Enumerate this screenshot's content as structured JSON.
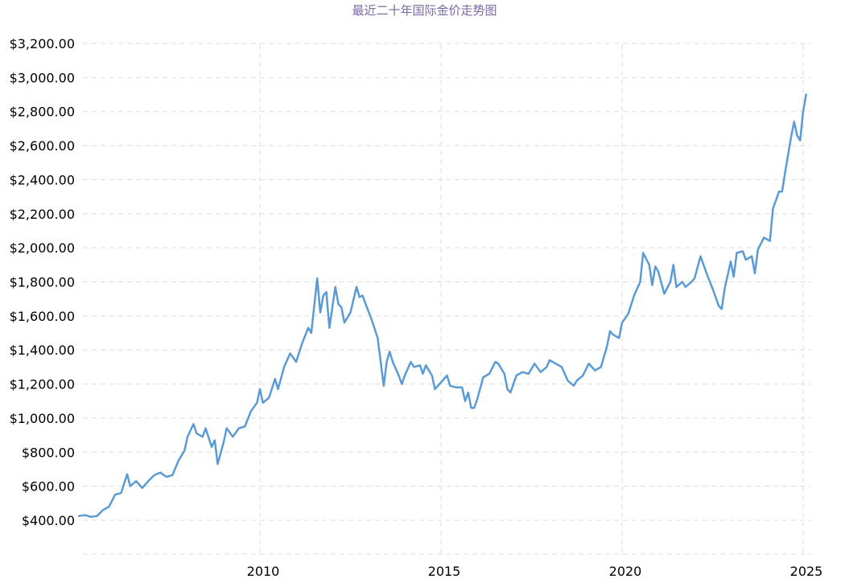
{
  "chart_data": {
    "type": "line",
    "title": "最近二十年国际金价走势图",
    "xlabel": "",
    "ylabel": "",
    "ylim": [
      400,
      3200
    ],
    "y_ticks": [
      400,
      600,
      800,
      1000,
      1200,
      1400,
      1600,
      1800,
      2000,
      2200,
      2400,
      2600,
      2800,
      3000,
      3200
    ],
    "y_tick_labels": [
      "$400.00",
      "$600.00",
      "$800.00",
      "$1,000.00",
      "$1,200.00",
      "$1,400.00",
      "$1,600.00",
      "$1,800.00",
      "$2,000.00",
      "$2,200.00",
      "$2,400.00",
      "$2,600.00",
      "$2,800.00",
      "$3,000.00",
      "$3,200.00"
    ],
    "x_ticks": [
      "2010",
      "2015",
      "2020",
      "2025"
    ],
    "grid": true,
    "legend": "none",
    "color": "#5b9bd5",
    "series": [
      {
        "values": [
          [
            "2005-01",
            425
          ],
          [
            "2005-03",
            430
          ],
          [
            "2005-05",
            420
          ],
          [
            "2005-07",
            425
          ],
          [
            "2005-09",
            460
          ],
          [
            "2005-11",
            480
          ],
          [
            "2006-01",
            550
          ],
          [
            "2006-03",
            560
          ],
          [
            "2006-05",
            670
          ],
          [
            "2006-06",
            600
          ],
          [
            "2006-08",
            630
          ],
          [
            "2006-10",
            590
          ],
          [
            "2006-12",
            630
          ],
          [
            "2007-02",
            665
          ],
          [
            "2007-04",
            680
          ],
          [
            "2007-06",
            655
          ],
          [
            "2007-08",
            665
          ],
          [
            "2007-10",
            750
          ],
          [
            "2007-12",
            810
          ],
          [
            "2008-01",
            890
          ],
          [
            "2008-03",
            965
          ],
          [
            "2008-04",
            910
          ],
          [
            "2008-06",
            890
          ],
          [
            "2008-07",
            940
          ],
          [
            "2008-09",
            830
          ],
          [
            "2008-10",
            870
          ],
          [
            "2008-11",
            730
          ],
          [
            "2009-01",
            860
          ],
          [
            "2009-02",
            940
          ],
          [
            "2009-04",
            890
          ],
          [
            "2009-06",
            940
          ],
          [
            "2009-08",
            950
          ],
          [
            "2009-10",
            1040
          ],
          [
            "2009-12",
            1090
          ],
          [
            "2010-01",
            1170
          ],
          [
            "2010-02",
            1090
          ],
          [
            "2010-04",
            1120
          ],
          [
            "2010-06",
            1230
          ],
          [
            "2010-07",
            1170
          ],
          [
            "2010-09",
            1300
          ],
          [
            "2010-11",
            1380
          ],
          [
            "2011-01",
            1330
          ],
          [
            "2011-03",
            1440
          ],
          [
            "2011-05",
            1530
          ],
          [
            "2011-06",
            1500
          ],
          [
            "2011-08",
            1820
          ],
          [
            "2011-09",
            1620
          ],
          [
            "2011-10",
            1720
          ],
          [
            "2011-11",
            1740
          ],
          [
            "2011-12",
            1530
          ],
          [
            "2012-02",
            1770
          ],
          [
            "2012-03",
            1670
          ],
          [
            "2012-04",
            1650
          ],
          [
            "2012-05",
            1560
          ],
          [
            "2012-07",
            1620
          ],
          [
            "2012-09",
            1770
          ],
          [
            "2012-10",
            1710
          ],
          [
            "2012-11",
            1720
          ],
          [
            "2012-12",
            1670
          ],
          [
            "2013-02",
            1580
          ],
          [
            "2013-04",
            1470
          ],
          [
            "2013-06",
            1190
          ],
          [
            "2013-07",
            1330
          ],
          [
            "2013-08",
            1390
          ],
          [
            "2013-09",
            1330
          ],
          [
            "2013-11",
            1250
          ],
          [
            "2013-12",
            1200
          ],
          [
            "2014-01",
            1250
          ],
          [
            "2014-03",
            1330
          ],
          [
            "2014-04",
            1300
          ],
          [
            "2014-06",
            1310
          ],
          [
            "2014-07",
            1260
          ],
          [
            "2014-08",
            1310
          ],
          [
            "2014-10",
            1250
          ],
          [
            "2014-11",
            1170
          ],
          [
            "2015-01",
            1210
          ],
          [
            "2015-03",
            1250
          ],
          [
            "2015-04",
            1190
          ],
          [
            "2015-06",
            1180
          ],
          [
            "2015-08",
            1180
          ],
          [
            "2015-09",
            1100
          ],
          [
            "2015-10",
            1150
          ],
          [
            "2015-11",
            1060
          ],
          [
            "2015-12",
            1060
          ],
          [
            "2016-01",
            1110
          ],
          [
            "2016-03",
            1240
          ],
          [
            "2016-05",
            1260
          ],
          [
            "2016-07",
            1330
          ],
          [
            "2016-08",
            1320
          ],
          [
            "2016-10",
            1260
          ],
          [
            "2016-11",
            1170
          ],
          [
            "2016-12",
            1150
          ],
          [
            "2017-02",
            1250
          ],
          [
            "2017-04",
            1270
          ],
          [
            "2017-06",
            1260
          ],
          [
            "2017-08",
            1320
          ],
          [
            "2017-10",
            1270
          ],
          [
            "2017-12",
            1300
          ],
          [
            "2018-01",
            1340
          ],
          [
            "2018-03",
            1320
          ],
          [
            "2018-05",
            1300
          ],
          [
            "2018-07",
            1220
          ],
          [
            "2018-09",
            1190
          ],
          [
            "2018-10",
            1220
          ],
          [
            "2018-12",
            1250
          ],
          [
            "2019-02",
            1320
          ],
          [
            "2019-04",
            1280
          ],
          [
            "2019-06",
            1300
          ],
          [
            "2019-08",
            1420
          ],
          [
            "2019-09",
            1510
          ],
          [
            "2019-10",
            1490
          ],
          [
            "2019-12",
            1470
          ],
          [
            "2020-01",
            1560
          ],
          [
            "2020-03",
            1610
          ],
          [
            "2020-05",
            1720
          ],
          [
            "2020-07",
            1800
          ],
          [
            "2020-08",
            1970
          ],
          [
            "2020-10",
            1900
          ],
          [
            "2020-11",
            1780
          ],
          [
            "2020-12",
            1890
          ],
          [
            "2021-01",
            1860
          ],
          [
            "2021-03",
            1730
          ],
          [
            "2021-05",
            1800
          ],
          [
            "2021-06",
            1900
          ],
          [
            "2021-07",
            1770
          ],
          [
            "2021-09",
            1800
          ],
          [
            "2021-10",
            1770
          ],
          [
            "2021-12",
            1800
          ],
          [
            "2022-01",
            1820
          ],
          [
            "2022-03",
            1950
          ],
          [
            "2022-05",
            1850
          ],
          [
            "2022-07",
            1760
          ],
          [
            "2022-09",
            1660
          ],
          [
            "2022-10",
            1640
          ],
          [
            "2022-11",
            1760
          ],
          [
            "2023-01",
            1920
          ],
          [
            "2023-02",
            1830
          ],
          [
            "2023-03",
            1970
          ],
          [
            "2023-05",
            1980
          ],
          [
            "2023-06",
            1930
          ],
          [
            "2023-08",
            1950
          ],
          [
            "2023-09",
            1850
          ],
          [
            "2023-10",
            1990
          ],
          [
            "2023-12",
            2060
          ],
          [
            "2024-02",
            2040
          ],
          [
            "2024-03",
            2230
          ],
          [
            "2024-05",
            2330
          ],
          [
            "2024-06",
            2330
          ],
          [
            "2024-07",
            2440
          ],
          [
            "2024-09",
            2650
          ],
          [
            "2024-10",
            2740
          ],
          [
            "2024-11",
            2660
          ],
          [
            "2024-12",
            2630
          ],
          [
            "2025-01",
            2800
          ],
          [
            "2025-02",
            2900
          ]
        ]
      }
    ]
  }
}
